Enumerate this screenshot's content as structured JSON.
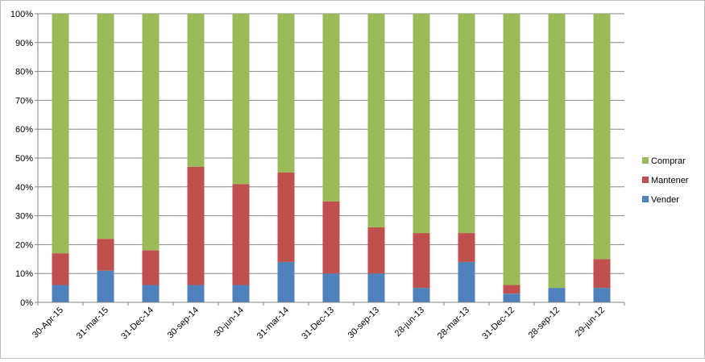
{
  "chart_data": {
    "type": "bar",
    "stacked": true,
    "percent_stacked": true,
    "categories": [
      "30-Apr-15",
      "31-mar-15",
      "31-Dec-14",
      "30-sep-14",
      "30-jun-14",
      "31-mar-14",
      "31-Dec-13",
      "30-sep-13",
      "28-jun-13",
      "28-mar-13",
      "31-Dec-12",
      "28-sep-12",
      "29-jun-12"
    ],
    "series": [
      {
        "name": "Vender",
        "color": "#4f81bd",
        "values": [
          6,
          11,
          6,
          6,
          6,
          14,
          10,
          10,
          5,
          14,
          3,
          5,
          5
        ]
      },
      {
        "name": "Mantener",
        "color": "#c0504d",
        "values": [
          11,
          11,
          12,
          41,
          35,
          31,
          25,
          16,
          19,
          10,
          3,
          0,
          10
        ]
      },
      {
        "name": "Comprar",
        "color": "#9bbb59",
        "values": [
          83,
          78,
          82,
          53,
          59,
          55,
          65,
          74,
          76,
          76,
          94,
          95,
          85
        ]
      }
    ],
    "ylim": [
      0,
      100
    ],
    "yticks": [
      "0%",
      "10%",
      "20%",
      "30%",
      "40%",
      "50%",
      "60%",
      "70%",
      "80%",
      "90%",
      "100%"
    ],
    "legend": [
      "Comprar",
      "Mantener",
      "Vender"
    ],
    "legend_position": "right",
    "grid": true,
    "gridline_color": "#868686",
    "axis_color": "#868686"
  }
}
